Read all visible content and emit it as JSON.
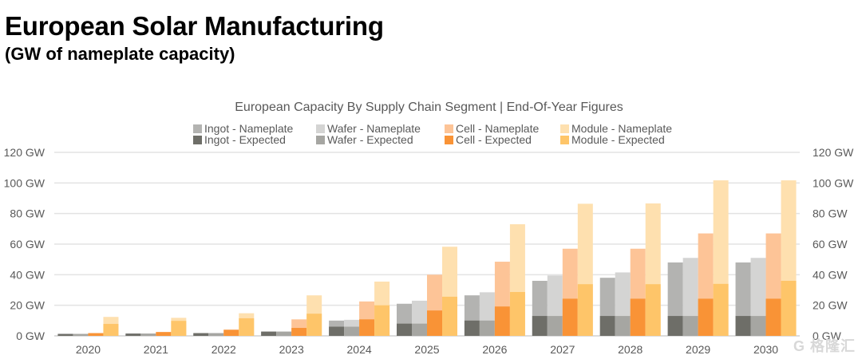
{
  "page": {
    "title": "European Solar Manufacturing",
    "subtitle": "(GW of nameplate capacity)",
    "watermark": "G 格隆汇"
  },
  "chart_data": {
    "type": "bar",
    "title": "European Capacity By Supply Chain Segment | End-Of-Year Figures",
    "xlabel": "",
    "ylabel": "",
    "ylim": [
      0,
      120
    ],
    "yticks": [
      0,
      20,
      40,
      60,
      80,
      100,
      120
    ],
    "ytick_labels": [
      "0 GW",
      "20 GW",
      "40 GW",
      "60 GW",
      "80 GW",
      "100 GW",
      "120 GW"
    ],
    "dual_y_axis": true,
    "grid": true,
    "legend_position": "top-center",
    "categories": [
      "2020",
      "2021",
      "2022",
      "2023",
      "2024",
      "2025",
      "2026",
      "2027",
      "2028",
      "2029",
      "2030"
    ],
    "segments": [
      "Ingot",
      "Wafer",
      "Cell",
      "Module"
    ],
    "series": [
      {
        "name": "Ingot - Nameplate",
        "segment": "Ingot",
        "kind": "nameplate",
        "color": "#b3b3b1",
        "values": [
          1.3,
          1.5,
          1.8,
          2.8,
          10,
          21,
          26.5,
          36,
          38,
          48,
          48
        ]
      },
      {
        "name": "Ingot - Expected",
        "segment": "Ingot",
        "kind": "expected",
        "color": "#6e6e68",
        "values": [
          1.3,
          1.5,
          1.8,
          2.8,
          6,
          8,
          10,
          13,
          13,
          13,
          13
        ]
      },
      {
        "name": "Wafer - Nameplate",
        "segment": "Wafer",
        "kind": "nameplate",
        "color": "#d4d4d3",
        "values": [
          1.3,
          1.5,
          1.8,
          2.8,
          10.5,
          23,
          28.5,
          39.5,
          41.5,
          51,
          51
        ]
      },
      {
        "name": "Wafer - Expected",
        "segment": "Wafer",
        "kind": "expected",
        "color": "#a6a6a2",
        "values": [
          1.3,
          1.5,
          1.8,
          2.8,
          6,
          8,
          10,
          13,
          13,
          13,
          13
        ]
      },
      {
        "name": "Cell - Nameplate",
        "segment": "Cell",
        "kind": "nameplate",
        "color": "#fdc497",
        "values": [
          1.8,
          2.5,
          4,
          10.8,
          22.5,
          40,
          48.5,
          57,
          57,
          67,
          67
        ]
      },
      {
        "name": "Cell - Expected",
        "segment": "Cell",
        "kind": "expected",
        "color": "#f99336",
        "values": [
          1.8,
          2.5,
          4,
          5.2,
          10.8,
          16.6,
          19.2,
          24.3,
          24.3,
          24.3,
          24.3
        ]
      },
      {
        "name": "Module - Nameplate",
        "segment": "Module",
        "kind": "nameplate",
        "color": "#fee0af",
        "values": [
          12.4,
          11.8,
          14.8,
          26.5,
          35.5,
          58.3,
          73,
          86.4,
          86.6,
          101.7,
          101.7
        ]
      },
      {
        "name": "Module - Expected",
        "segment": "Module",
        "kind": "expected",
        "color": "#fec569",
        "values": [
          7.8,
          9.8,
          11.5,
          14.5,
          20,
          25.6,
          28.7,
          33.8,
          33.8,
          34,
          36
        ]
      }
    ]
  }
}
